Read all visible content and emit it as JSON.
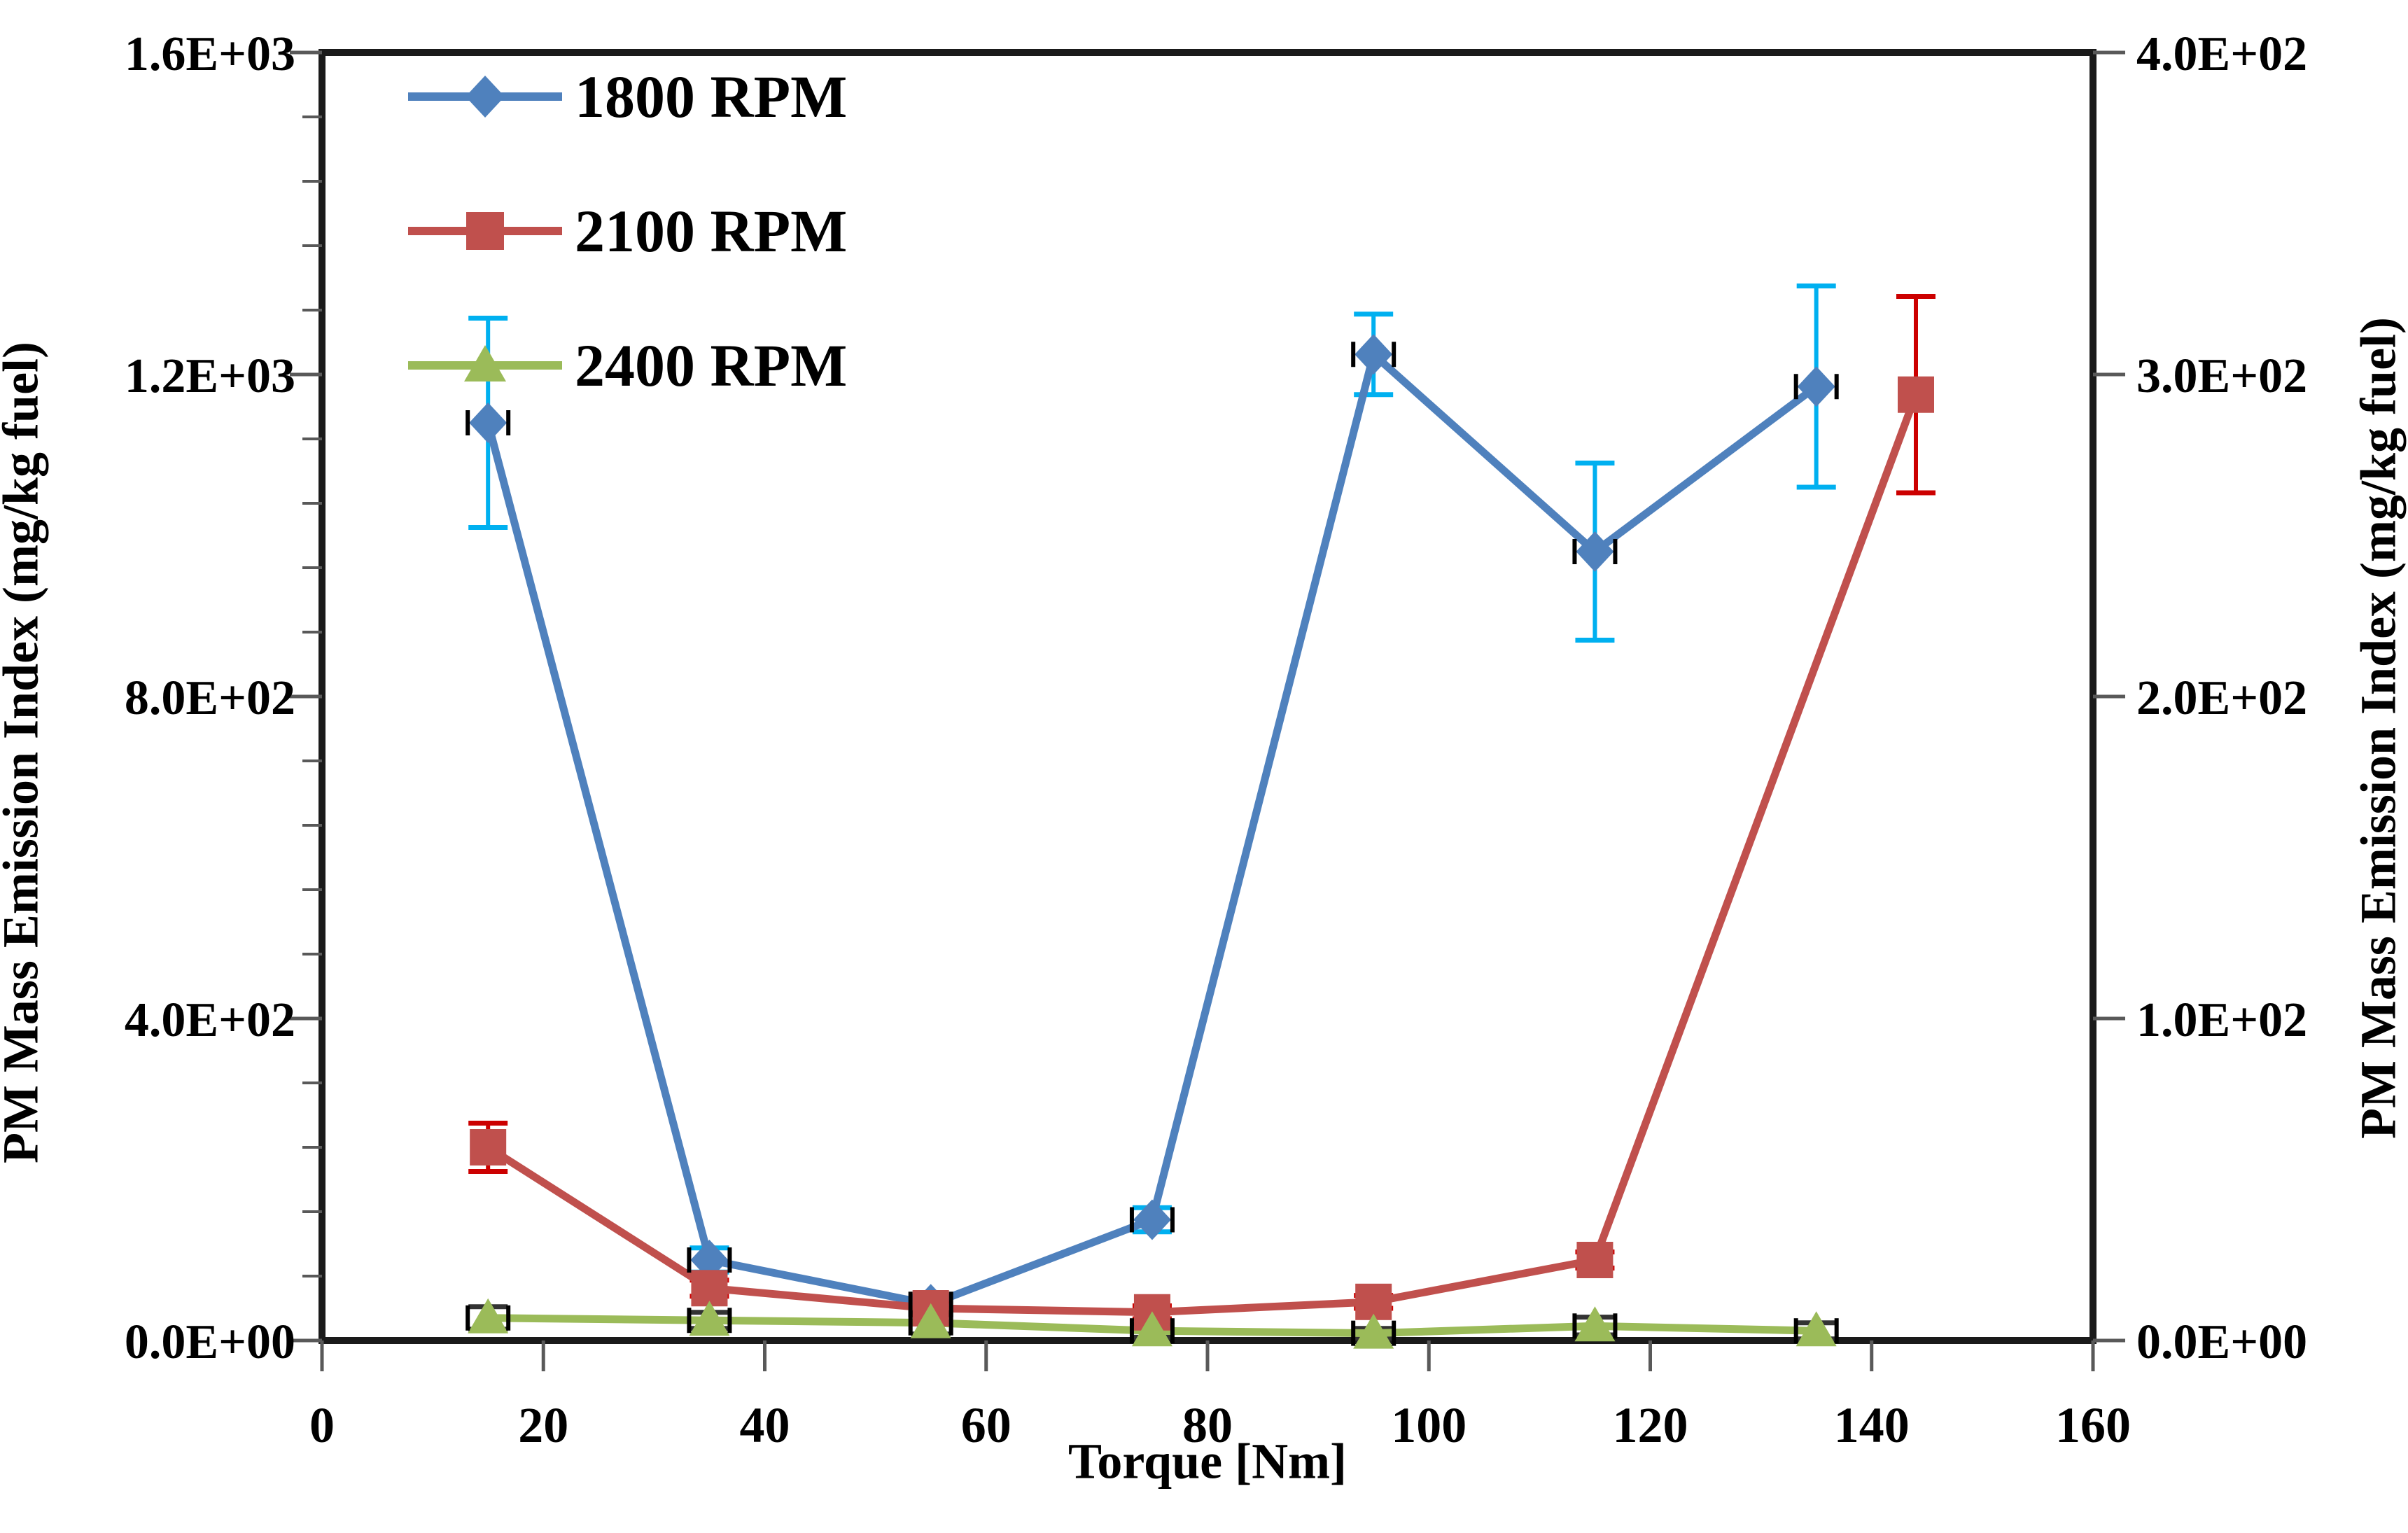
{
  "figure": {
    "background": "#ffffff"
  },
  "colors": {
    "spine": "#1a1a1a",
    "tick": "#595959",
    "text": "#000000",
    "series_blue": "#4F81BD",
    "series_red": "#C0504D",
    "series_green": "#9BBB59",
    "error_cyan": "#00B0F0",
    "error_red": "#CC0000",
    "error_dark": "#333333"
  },
  "axes": {
    "x": {
      "title": "Torque [Nm]",
      "tick_labels": [
        "0",
        "20",
        "40",
        "60",
        "80",
        "100",
        "120",
        "140",
        "160"
      ],
      "tick_values": [
        0,
        20,
        40,
        60,
        80,
        100,
        120,
        140,
        160
      ],
      "range": [
        0,
        160
      ]
    },
    "y_left": {
      "title": "PM Mass Emission Index (mg/kg fuel)",
      "tick_labels": [
        "0.0E+00",
        "4.0E+02",
        "8.0E+02",
        "1.2E+03",
        "1.6E+03"
      ],
      "tick_values": [
        0,
        400,
        800,
        1200,
        1600
      ],
      "minor_step": 80,
      "range": [
        0,
        1600
      ]
    },
    "y_right": {
      "title": "PM Mass Emission Index (mg/kg fuel)",
      "tick_labels": [
        "0.0E+00",
        "1.0E+02",
        "2.0E+02",
        "3.0E+02",
        "4.0E+02"
      ],
      "tick_values": [
        0,
        100,
        200,
        300,
        400
      ],
      "range": [
        0,
        400
      ]
    }
  },
  "chart_data": {
    "type": "line",
    "title": "",
    "xlabel": "Torque [Nm]",
    "ylabel": "PM Mass Emission Index (mg/kg fuel)",
    "xlim": [
      0,
      160
    ],
    "ylim_left": [
      0,
      1600
    ],
    "ylim_right": [
      0,
      400
    ],
    "grid": false,
    "legend_position": "top-left",
    "series": [
      {
        "name": "1800 RPM",
        "axis": "left",
        "color": "#4F81BD",
        "marker": "diamond",
        "error_color": "#00B0F0",
        "x": [
          15,
          35,
          55,
          75,
          95,
          115,
          135
        ],
        "y": [
          1140,
          100,
          45,
          150,
          1225,
          980,
          1185
        ],
        "yerr": [
          130,
          15,
          10,
          15,
          50,
          110,
          125
        ],
        "x_cap_dashes": true
      },
      {
        "name": "2100 RPM",
        "axis": "left",
        "color": "#C0504D",
        "marker": "square",
        "error_color": "#CC0000",
        "x": [
          15,
          35,
          55,
          75,
          95,
          115,
          144
        ],
        "y": [
          240,
          65,
          40,
          35,
          48,
          100,
          1175
        ],
        "yerr": [
          30,
          10,
          8,
          8,
          8,
          10,
          122
        ],
        "x_cap_dashes": false
      },
      {
        "name": "2400 RPM",
        "axis": "left",
        "color": "#9BBB59",
        "marker": "triangle",
        "error_color": "#333333",
        "x": [
          15,
          35,
          55,
          75,
          95,
          115,
          135
        ],
        "y": [
          28,
          25,
          22,
          12,
          9,
          18,
          12
        ],
        "yerr": [
          14,
          10,
          14,
          8,
          6,
          11,
          10
        ],
        "x_cap_dashes": true
      }
    ]
  }
}
